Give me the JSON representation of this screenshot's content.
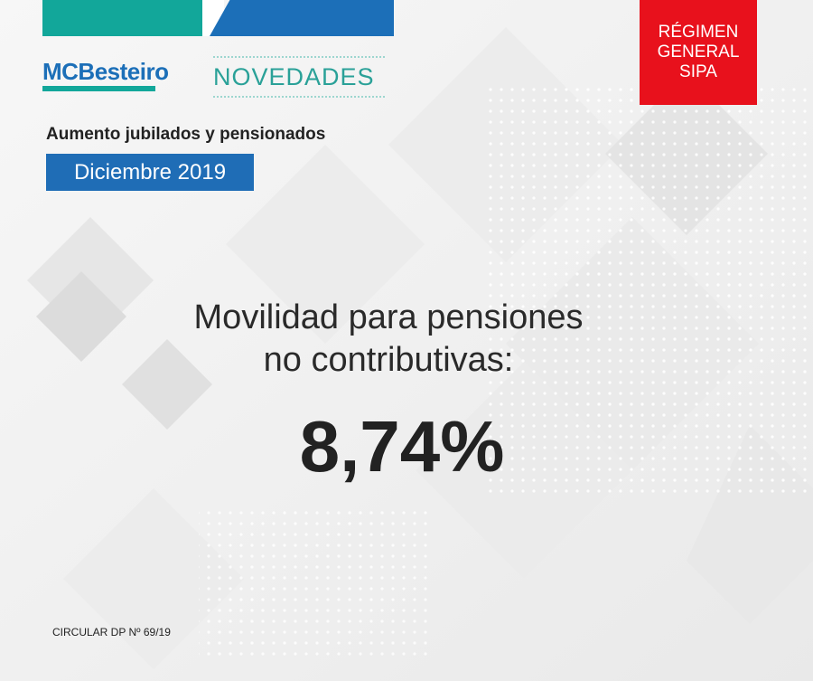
{
  "brand": {
    "logo_text": "MCBesteiro",
    "section": "NOVEDADES"
  },
  "badge": {
    "line1": "RÉGIMEN",
    "line2": "GENERAL",
    "line3": "SIPA"
  },
  "header": {
    "subtitle": "Aumento jubilados y pensionados",
    "period": "Diciembre 2019"
  },
  "main": {
    "headline_line1": "Movilidad para pensiones",
    "headline_line2": "no contributivas:",
    "value": "8,74%"
  },
  "footer": {
    "circular": "CIRCULAR DP Nº 69/19"
  },
  "colors": {
    "teal": "#12a79a",
    "blue": "#1c6fb8",
    "red": "#e8111c"
  }
}
